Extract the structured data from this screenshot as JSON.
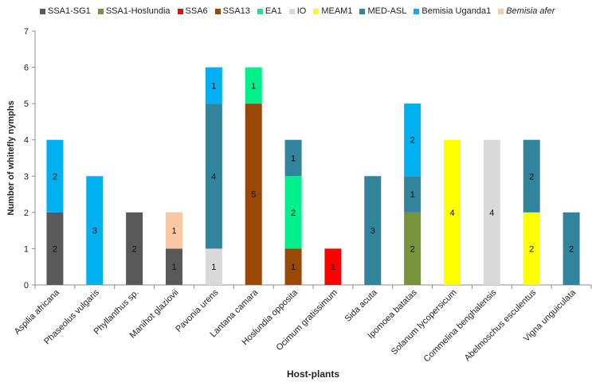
{
  "chart_data": {
    "type": "bar",
    "stacked": true,
    "title": "",
    "xlabel": "Host-plants",
    "ylabel": "Number of whitefly nymphs",
    "ylim": [
      0,
      7
    ],
    "yticks": [
      0,
      1,
      2,
      3,
      4,
      5,
      6,
      7
    ],
    "grid": false,
    "legend_position": "top",
    "categories": [
      "Aspilia africana",
      "Phaseolus vulgaris",
      "Phyllanthus sp.",
      "Manihot glaziovii",
      "Pavonia urens",
      "Lantana camara",
      "Hoslundia opposita",
      "Ocimum gratissimum",
      "Sida acuta",
      "Ipomoea batatas",
      "Solanum lycopersicum",
      "Commelina benghalensis",
      "Abelmoschus esculentus",
      "Vigna unguiculata"
    ],
    "series": [
      {
        "name": "SSA1-SG1",
        "color": "#595959",
        "italic": false,
        "values": [
          2,
          0,
          2,
          1,
          0,
          0,
          0,
          0,
          0,
          0,
          0,
          0,
          0,
          0
        ]
      },
      {
        "name": "SSA1-Hoslundia",
        "color": "#77933C",
        "italic": false,
        "values": [
          0,
          0,
          0,
          0,
          0,
          0,
          0,
          0,
          0,
          2,
          0,
          0,
          0,
          0
        ]
      },
      {
        "name": "SSA6",
        "color": "#FF0000",
        "italic": false,
        "values": [
          0,
          0,
          0,
          0,
          0,
          0,
          0,
          1,
          0,
          0,
          0,
          0,
          0,
          0
        ]
      },
      {
        "name": "SSA13",
        "color": "#984807",
        "italic": false,
        "values": [
          0,
          0,
          0,
          0,
          0,
          5,
          1,
          0,
          0,
          0,
          0,
          0,
          0,
          0
        ]
      },
      {
        "name": "EA1",
        "color": "#00F08C",
        "italic": false,
        "values": [
          0,
          0,
          0,
          0,
          0,
          1,
          2,
          0,
          0,
          0,
          0,
          0,
          0,
          0
        ]
      },
      {
        "name": "IO",
        "color": "#D9D9D9",
        "italic": false,
        "values": [
          0,
          0,
          0,
          0,
          1,
          0,
          0,
          0,
          0,
          0,
          0,
          4,
          0,
          0
        ]
      },
      {
        "name": "MEAM1",
        "color": "#FFFF00",
        "italic": false,
        "values": [
          0,
          0,
          0,
          0,
          0,
          0,
          0,
          0,
          0,
          0,
          4,
          0,
          2,
          0
        ]
      },
      {
        "name": "MED-ASL",
        "color": "#31849B",
        "italic": false,
        "values": [
          0,
          0,
          0,
          0,
          4,
          0,
          1,
          0,
          3,
          1,
          0,
          0,
          2,
          2
        ]
      },
      {
        "name": "Bemisia Uganda1",
        "color": "#00B0F0",
        "italic": false,
        "values": [
          2,
          3,
          0,
          0,
          1,
          0,
          0,
          0,
          0,
          2,
          0,
          0,
          0,
          0
        ]
      },
      {
        "name": "Bemisia afer",
        "color": "#FAC8A5",
        "italic": true,
        "values": [
          0,
          0,
          0,
          1,
          0,
          0,
          0,
          0,
          0,
          0,
          0,
          0,
          0,
          0
        ]
      }
    ]
  }
}
